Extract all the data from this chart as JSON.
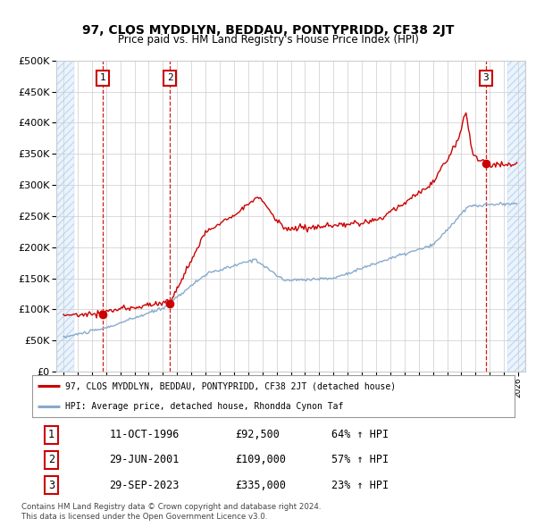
{
  "title": "97, CLOS MYDDLYN, BEDDAU, PONTYPRIDD, CF38 2JT",
  "subtitle": "Price paid vs. HM Land Registry's House Price Index (HPI)",
  "legend_line1": "97, CLOS MYDDLYN, BEDDAU, PONTYPRIDD, CF38 2JT (detached house)",
  "legend_line2": "HPI: Average price, detached house, Rhondda Cynon Taf",
  "footer1": "Contains HM Land Registry data © Crown copyright and database right 2024.",
  "footer2": "This data is licensed under the Open Government Licence v3.0.",
  "sales": [
    {
      "num": 1,
      "date": "11-OCT-1996",
      "price": "£92,500",
      "pct": "64% ↑ HPI",
      "year": 1996.78
    },
    {
      "num": 2,
      "date": "29-JUN-2001",
      "price": "£109,000",
      "pct": "57% ↑ HPI",
      "year": 2001.49
    },
    {
      "num": 3,
      "date": "29-SEP-2023",
      "price": "£335,000",
      "pct": "23% ↑ HPI",
      "year": 2023.74
    }
  ],
  "sale_prices": [
    92500,
    109000,
    335000
  ],
  "xmin": 1993.5,
  "xmax": 2026.5,
  "ymin": 0,
  "ymax": 500000,
  "hatch_left_end": 1994.75,
  "hatch_right_start": 2025.25,
  "red_color": "#cc0000",
  "blue_color": "#88aacc",
  "grid_color": "#cccccc",
  "bg_color": "#ffffff"
}
